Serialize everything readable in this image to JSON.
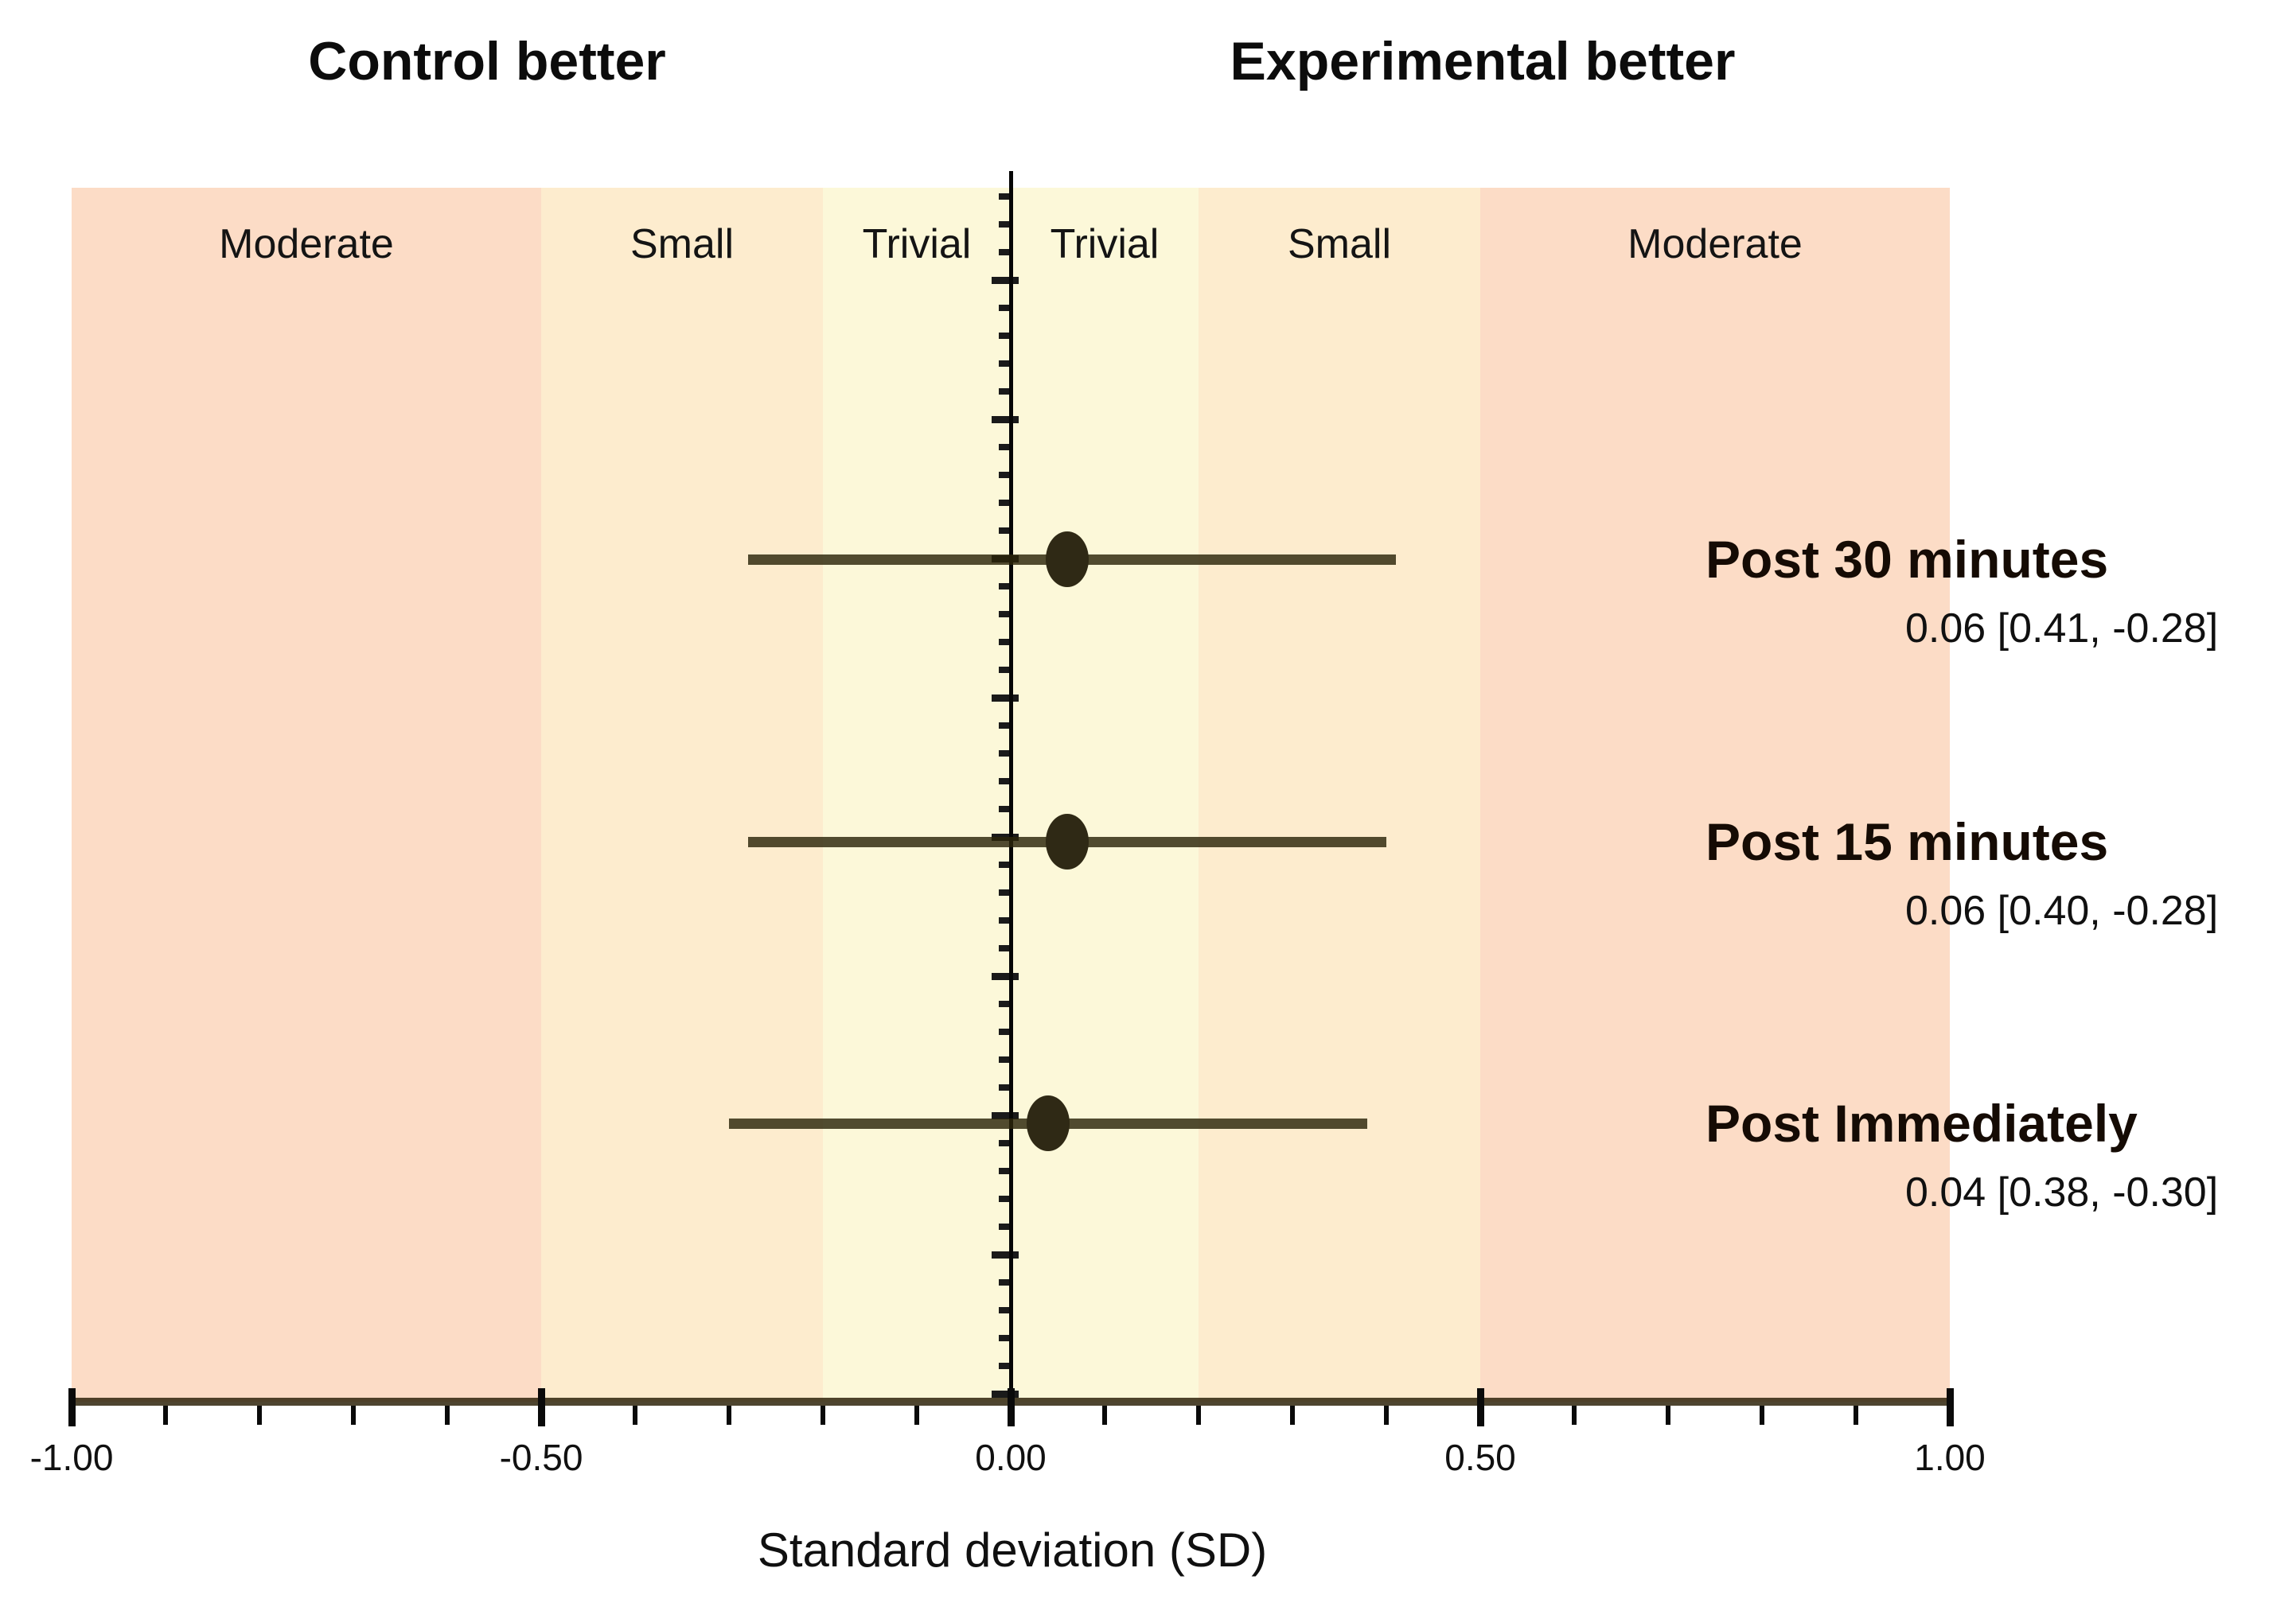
{
  "header": {
    "left_title": "Control better",
    "right_title": "Experimental better"
  },
  "chart_data": {
    "type": "scatter",
    "subtype": "forest-plot",
    "title": "",
    "x_axis": {
      "label": "Standard deviation (SD)",
      "min": -1.0,
      "max": 1.0,
      "major_ticks": [
        {
          "value": -1.0,
          "label": "-1.00"
        },
        {
          "value": -0.5,
          "label": "-0.50"
        },
        {
          "value": 0.0,
          "label": "0.00"
        },
        {
          "value": 0.5,
          "label": "0.50"
        },
        {
          "value": 1.0,
          "label": "1.00"
        }
      ],
      "minor_tick_step": 0.1,
      "zero_reference_line": true
    },
    "bands": [
      {
        "label": "Moderate",
        "from": -1.0,
        "to": -0.5,
        "color": "#fcdcc6"
      },
      {
        "label": "Small",
        "from": -0.5,
        "to": -0.2,
        "color": "#fdecce"
      },
      {
        "label": "Trivial",
        "from": -0.2,
        "to": 0.0,
        "color": "#fcf8d9"
      },
      {
        "label": "Trivial",
        "from": 0.0,
        "to": 0.2,
        "color": "#fcf8d9"
      },
      {
        "label": "Small",
        "from": 0.2,
        "to": 0.5,
        "color": "#fdecce"
      },
      {
        "label": "Moderate",
        "from": 0.5,
        "to": 1.0,
        "color": "#fcdcc6"
      }
    ],
    "studies": [
      {
        "label": "Post 30 minutes",
        "value_text": "0.06 [0.41, -0.28]",
        "estimate": 0.06,
        "ci_upper": 0.41,
        "ci_lower": -0.28
      },
      {
        "label": "Post 15 minutes",
        "value_text": "0.06 [0.40, -0.28]",
        "estimate": 0.06,
        "ci_upper": 0.4,
        "ci_lower": -0.28
      },
      {
        "label": "Post Immediately",
        "value_text": "0.04 [0.38, -0.30]",
        "estimate": 0.04,
        "ci_upper": 0.38,
        "ci_lower": -0.3
      }
    ],
    "legend_position": "none",
    "grid": false,
    "marker_color": "#2f2915",
    "ci_color": "rgba(43,36,10,0.82)"
  }
}
